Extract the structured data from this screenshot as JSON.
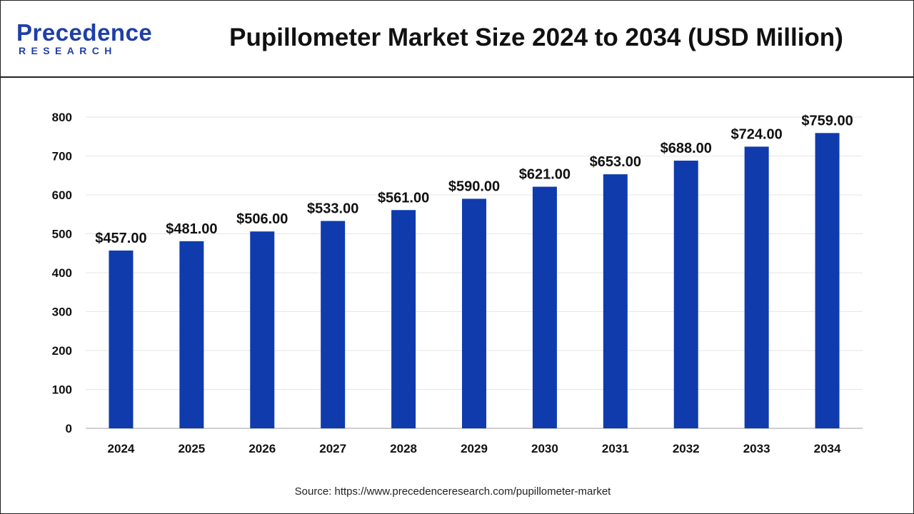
{
  "header": {
    "logo_word": "Precedence",
    "logo_sub": "RESEARCH",
    "title": "Pupillometer Market Size 2024 to 2034 (USD Million)"
  },
  "footer": {
    "source": "Source: https://www.precedenceresearch.com/pupillometer-market"
  },
  "colors": {
    "bar": "#0f3bad",
    "brand": "#1f3fa8",
    "gridline": "#e6e6e6",
    "axis": "#bfbfbf"
  },
  "chart_data": {
    "type": "bar",
    "title": "Pupillometer Market Size 2024 to 2034 (USD Million)",
    "xlabel": "",
    "ylabel": "",
    "categories": [
      "2024",
      "2025",
      "2026",
      "2027",
      "2028",
      "2029",
      "2030",
      "2031",
      "2032",
      "2033",
      "2034"
    ],
    "values": [
      457,
      481,
      506,
      533,
      561,
      590,
      621,
      653,
      688,
      724,
      759
    ],
    "data_labels": [
      "$457.00",
      "$481.00",
      "$506.00",
      "$533.00",
      "$561.00",
      "$590.00",
      "$621.00",
      "$653.00",
      "$688.00",
      "$724.00",
      "$759.00"
    ],
    "ylim": [
      0,
      800
    ],
    "yticks": [
      0,
      100,
      200,
      300,
      400,
      500,
      600,
      700,
      800
    ],
    "grid": true,
    "legend": "none"
  }
}
